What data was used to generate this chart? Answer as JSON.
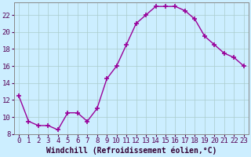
{
  "x": [
    0,
    1,
    2,
    3,
    4,
    5,
    6,
    7,
    8,
    9,
    10,
    11,
    12,
    13,
    14,
    15,
    16,
    17,
    18,
    19,
    20,
    21,
    22,
    23
  ],
  "y": [
    12.5,
    9.5,
    9.0,
    9.0,
    8.5,
    10.5,
    10.5,
    9.5,
    11.0,
    14.5,
    16.0,
    18.5,
    21.0,
    22.0,
    23.0,
    23.0,
    23.0,
    22.5,
    21.5,
    19.5,
    18.5,
    17.5,
    17.0,
    16.0
  ],
  "line_color": "#990099",
  "marker": "+",
  "marker_size": 4,
  "marker_linewidth": 1.2,
  "line_width": 1.0,
  "bg_color": "#cceeff",
  "grid_color": "#aacccc",
  "xlabel": "Windchill (Refroidissement éolien,°C)",
  "xlabel_fontsize": 7,
  "tick_fontsize": 6.5,
  "ylim": [
    8,
    23.5
  ],
  "xlim": [
    -0.5,
    23.5
  ],
  "yticks": [
    8,
    10,
    12,
    14,
    16,
    18,
    20,
    22
  ],
  "xticks": [
    0,
    1,
    2,
    3,
    4,
    5,
    6,
    7,
    8,
    9,
    10,
    11,
    12,
    13,
    14,
    15,
    16,
    17,
    18,
    19,
    20,
    21,
    22,
    23
  ],
  "spine_color": "#888888"
}
